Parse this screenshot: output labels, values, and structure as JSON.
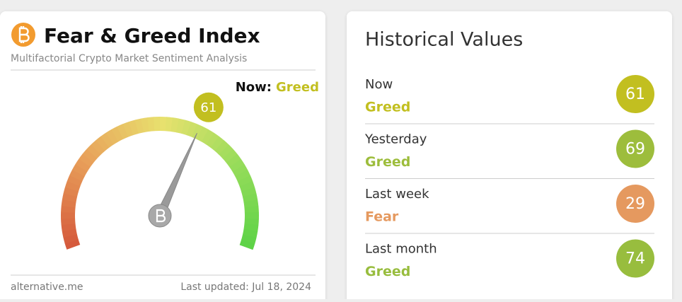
{
  "widget": {
    "title": "Fear & Greed Index",
    "subtitle": "Multifactorial Crypto Market Sentiment Analysis",
    "now_label": "Now:",
    "gauge": {
      "value": 61,
      "classification": "Greed",
      "color": "#c2bf20",
      "range": [
        0,
        100
      ]
    },
    "source": "alternative.me",
    "updated": "Last updated: Jul 18, 2024"
  },
  "history": {
    "title": "Historical Values",
    "rows": [
      {
        "label": "Now",
        "classification": "Greed",
        "value": 61,
        "color": "#c2bf20"
      },
      {
        "label": "Yesterday",
        "classification": "Greed",
        "value": 69,
        "color": "#9dbd3c"
      },
      {
        "label": "Last week",
        "classification": "Fear",
        "value": 29,
        "color": "#e5995f"
      },
      {
        "label": "Last month",
        "classification": "Greed",
        "value": 74,
        "color": "#98bd3e"
      }
    ]
  }
}
